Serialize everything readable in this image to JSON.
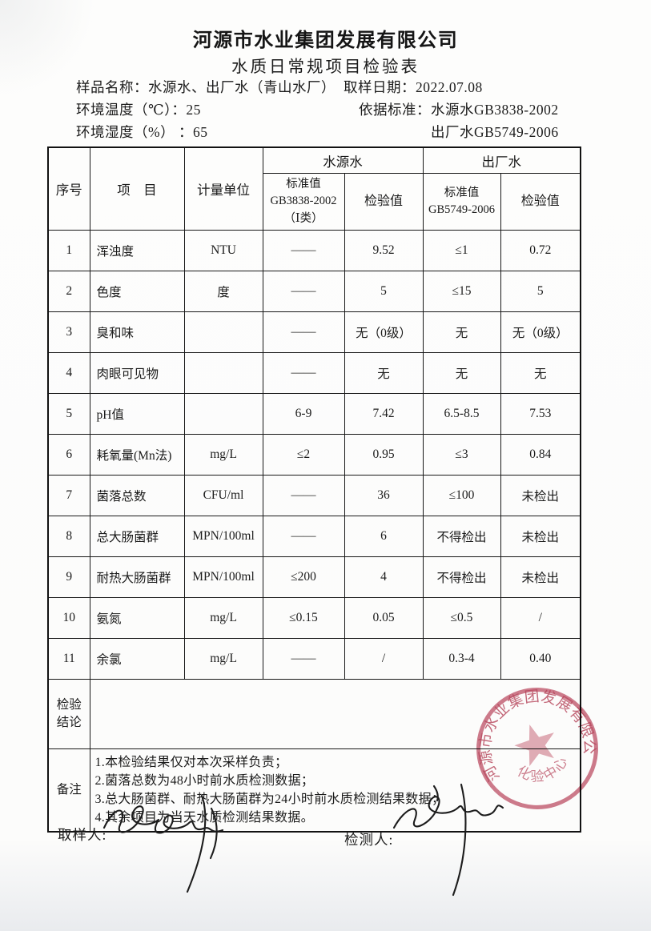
{
  "header": {
    "company": "河源市水业集团发展有限公司",
    "form_title": "水质日常规项目检验表",
    "sample_label": "样品名称：",
    "sample_value": "水源水、出厂水（青山水厂）",
    "date_label": "取样日期：",
    "date_value": "2022.07.08",
    "temp_label": "环境温度（℃）：",
    "temp_value": "25",
    "standard_label": "依据标准：",
    "standard_source": "水源水GB3838-2002",
    "humidity_label": "环境湿度（%） ：",
    "humidity_value": "65",
    "standard_factory": "出厂水GB5749-2006"
  },
  "table": {
    "headers": {
      "no": "序号",
      "item": "项　目",
      "unit": "计量单位",
      "source_water": "水源水",
      "factory_water": "出厂水",
      "std_source": "标准值\nGB3838-2002\n（Ⅰ类）",
      "check_source": "检验值",
      "std_factory": "标准值\nGB5749-2006",
      "check_factory": "检验值"
    },
    "rows": [
      [
        "1",
        "浑浊度",
        "NTU",
        "——",
        "9.52",
        "≤1",
        "0.72"
      ],
      [
        "2",
        "色度",
        "度",
        "——",
        "5",
        "≤15",
        "5"
      ],
      [
        "3",
        "臭和味",
        "",
        "——",
        "无（0级）",
        "无",
        "无（0级）"
      ],
      [
        "4",
        "肉眼可见物",
        "",
        "——",
        "无",
        "无",
        "无"
      ],
      [
        "5",
        "pH值",
        "",
        "6-9",
        "7.42",
        "6.5-8.5",
        "7.53"
      ],
      [
        "6",
        "耗氧量(Mn法)",
        "mg/L",
        "≤2",
        "0.95",
        "≤3",
        "0.84"
      ],
      [
        "7",
        "菌落总数",
        "CFU/ml",
        "——",
        "36",
        "≤100",
        "未检出"
      ],
      [
        "8",
        "总大肠菌群",
        "MPN/100ml",
        "——",
        "6",
        "不得检出",
        "未检出"
      ],
      [
        "9",
        "耐热大肠菌群",
        "MPN/100ml",
        "≤200",
        "4",
        "不得检出",
        "未检出"
      ],
      [
        "10",
        "氨氮",
        "mg/L",
        "≤0.15",
        "0.05",
        "≤0.5",
        "/"
      ],
      [
        "11",
        "余氯",
        "mg/L",
        "——",
        "/",
        "0.3-4",
        "0.40"
      ]
    ],
    "conclusion_label": "检验\n结论",
    "conclusion_value": "",
    "remarks_label": "备注",
    "remarks": [
      "1.本检验结果仅对本次采样负责；",
      "2.菌落总数为48小时前水质检测数据；",
      "3.总大肠菌群、耐热大肠菌群为24小时前水质检测结果数据；",
      "4.其余项目为当天水质检测结果数据。"
    ]
  },
  "footer": {
    "sampler_label": "取样人:",
    "tester_label": "检测人:"
  },
  "stamp": {
    "ring_text": "河源市水业集团发展有限公司",
    "center_text": "化验中心",
    "color": "#c2566c"
  }
}
